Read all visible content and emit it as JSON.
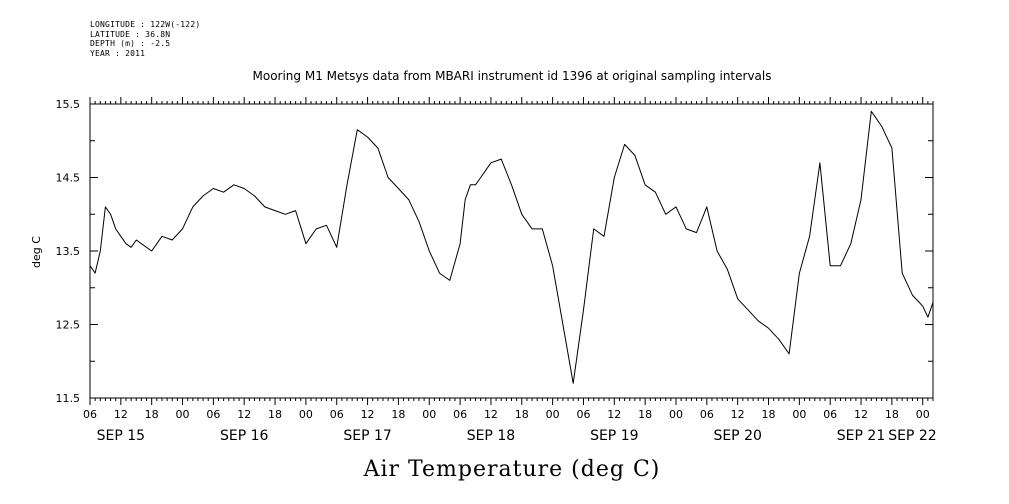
{
  "header": {
    "longitude": "LONGITUDE : 122W(-122)",
    "latitude": "LATITUDE : 36.8N",
    "depth": "DEPTH (m) : -2.5",
    "year": "YEAR : 2011"
  },
  "chart_data": {
    "type": "line",
    "title": "Mooring M1 Metsys data from MBARI instrument id 1396 at original sampling intervals",
    "xlabel": "Air Temperature (deg C)",
    "ylabel": "deg C",
    "ylim": [
      11.5,
      15.5
    ],
    "yticks": [
      "15.5",
      "14.5",
      "13.5",
      "12.5",
      "11.5"
    ],
    "xlim_hours": [
      0,
      164
    ],
    "hour_ticks": [
      "06",
      "12",
      "18",
      "00",
      "06",
      "12",
      "18",
      "00",
      "06",
      "12",
      "18",
      "00",
      "06",
      "12",
      "18",
      "00",
      "06",
      "12",
      "18",
      "00",
      "06",
      "12",
      "18",
      "00",
      "06",
      "12",
      "18",
      "00"
    ],
    "date_labels": [
      "SEP 15",
      "SEP 16",
      "SEP 17",
      "SEP 18",
      "SEP 19",
      "SEP 20",
      "SEP 21",
      "SEP 22"
    ],
    "grid": false,
    "series": [
      {
        "x": [
          0,
          1,
          2,
          3,
          4,
          5,
          6,
          7,
          8,
          9,
          10,
          12,
          14,
          16,
          18,
          20,
          22,
          24,
          26,
          28,
          30,
          32,
          34,
          36,
          38,
          40,
          42,
          44,
          46,
          48,
          50,
          52,
          54,
          56,
          58,
          60,
          62,
          64,
          66,
          68,
          70,
          72,
          73,
          74,
          75,
          76,
          77,
          78,
          80,
          82,
          84,
          86,
          88,
          90,
          92,
          94,
          96,
          98,
          100,
          102,
          104,
          106,
          108,
          110,
          112,
          114,
          116,
          118,
          120,
          122,
          124,
          126,
          128,
          130,
          132,
          134,
          136,
          138,
          140,
          142,
          144,
          146,
          148,
          150,
          152,
          154,
          156,
          158,
          160,
          162,
          163,
          164
        ],
        "values": [
          13.3,
          13.2,
          13.5,
          14.1,
          14.0,
          13.8,
          13.7,
          13.6,
          13.55,
          13.65,
          13.6,
          13.5,
          13.7,
          13.65,
          13.8,
          14.1,
          14.25,
          14.35,
          14.3,
          14.4,
          14.35,
          14.25,
          14.1,
          14.05,
          14.0,
          14.05,
          13.6,
          13.8,
          13.85,
          13.55,
          14.4,
          15.15,
          15.05,
          14.9,
          14.5,
          14.35,
          14.2,
          13.9,
          13.5,
          13.2,
          13.1,
          13.6,
          14.2,
          14.4,
          14.4,
          14.5,
          14.6,
          14.7,
          14.75,
          14.4,
          14.0,
          13.8,
          13.8,
          13.3,
          12.5,
          11.7,
          12.7,
          13.8,
          13.7,
          14.5,
          14.95,
          14.8,
          14.4,
          14.3,
          14.0,
          14.1,
          13.8,
          13.75,
          14.1,
          13.5,
          13.25,
          12.85,
          12.7,
          12.55,
          12.45,
          12.3,
          12.1,
          13.2,
          13.7,
          14.7,
          13.3,
          13.3,
          13.6,
          14.2,
          15.4,
          15.2,
          14.9,
          13.2,
          12.9,
          12.75,
          12.6,
          12.8
        ]
      }
    ]
  }
}
